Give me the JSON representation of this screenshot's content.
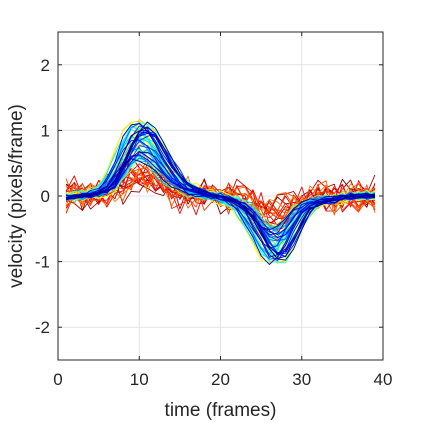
{
  "chart_data": {
    "type": "line",
    "title": "",
    "xlabel": "time (frames)",
    "ylabel": "velocity (pixels/frame)",
    "xlim": [
      0,
      40
    ],
    "ylim": [
      -2.5,
      2.5
    ],
    "xticks": [
      0,
      10,
      20,
      30,
      40
    ],
    "yticks": [
      -2,
      -1,
      0,
      1,
      2
    ],
    "xtick_labels": [
      "0",
      "10",
      "20",
      "30",
      "40"
    ],
    "ytick_labels": [
      "-2",
      "-1",
      "0",
      "1",
      "2"
    ],
    "grid": true,
    "legend": "none",
    "colormap": "jet",
    "series_count": 80,
    "mean_profile": {
      "x": [
        1,
        2,
        3,
        4,
        5,
        6,
        7,
        8,
        9,
        10,
        11,
        12,
        13,
        14,
        15,
        16,
        17,
        18,
        19,
        20,
        21,
        22,
        23,
        24,
        25,
        26,
        27,
        28,
        29,
        30,
        31,
        32,
        33,
        34,
        35,
        36,
        37,
        38,
        39
      ],
      "values": [
        -0.02,
        0.0,
        0.0,
        0.02,
        0.05,
        0.12,
        0.28,
        0.52,
        0.72,
        0.8,
        0.75,
        0.6,
        0.42,
        0.27,
        0.16,
        0.09,
        0.05,
        0.02,
        0.0,
        -0.02,
        -0.05,
        -0.1,
        -0.2,
        -0.38,
        -0.55,
        -0.7,
        -0.72,
        -0.58,
        -0.38,
        -0.2,
        -0.1,
        -0.08,
        -0.06,
        -0.03,
        -0.02,
        0.0,
        0.0,
        0.0,
        0.0
      ]
    },
    "series_spread": {
      "peak_positive_max": 1.32,
      "peak_negative_min": -1.2,
      "noise_amplitude_late_series": 0.35
    }
  }
}
